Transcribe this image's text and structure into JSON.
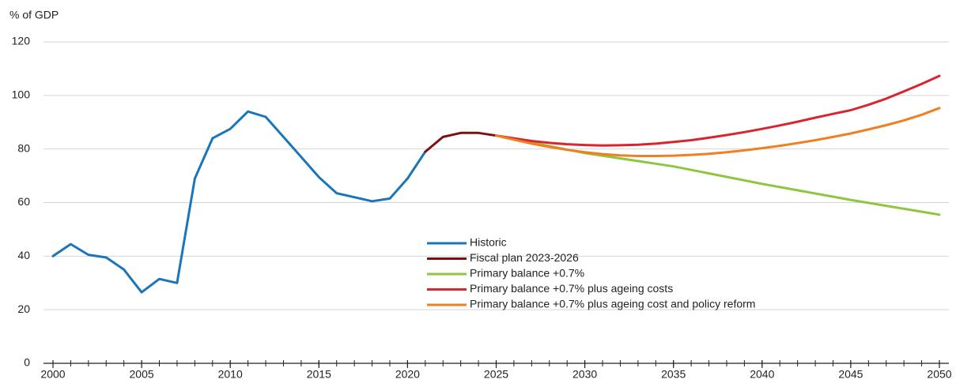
{
  "chart_data": {
    "type": "line",
    "y_label": "% of GDP",
    "xlim": [
      2000,
      2050
    ],
    "xticks": [
      2000,
      2005,
      2010,
      2015,
      2020,
      2025,
      2030,
      2035,
      2040,
      2045,
      2050
    ],
    "ylim": [
      0,
      120
    ],
    "yticks": [
      0,
      20,
      40,
      60,
      80,
      100,
      120
    ],
    "grid": true,
    "legend": "center",
    "series": [
      {
        "name": "Historic",
        "color": "#1b75bb",
        "x": [
          2000,
          2001,
          2002,
          2003,
          2004,
          2005,
          2006,
          2007,
          2008,
          2009,
          2010,
          2011,
          2012,
          2013,
          2014,
          2015,
          2016,
          2017,
          2018,
          2019,
          2020,
          2021
        ],
        "values": [
          40,
          44.5,
          40.5,
          39.5,
          35,
          26.5,
          31.5,
          30,
          69,
          84,
          87.5,
          94,
          92,
          84.5,
          77,
          69.5,
          63.5,
          62,
          60.5,
          61.5,
          69,
          79
        ]
      },
      {
        "name": "Fiscal plan 2023-2026",
        "color": "#7b1113",
        "x": [
          2021,
          2022,
          2023,
          2024,
          2025
        ],
        "values": [
          79,
          84.5,
          86,
          86,
          85
        ]
      },
      {
        "name": "Primary balance +0.7%",
        "color": "#8dc63f",
        "x": [
          2025,
          2030,
          2035,
          2040,
          2045,
          2050
        ],
        "values": [
          85,
          78.5,
          73.5,
          67,
          61,
          55.5
        ]
      },
      {
        "name": "Primary balance +0.7% plus ageing costs",
        "color": "#d7262f",
        "x": [
          2025,
          2026,
          2027,
          2028,
          2029,
          2030,
          2031,
          2032,
          2033,
          2034,
          2035,
          2036,
          2037,
          2038,
          2039,
          2040,
          2041,
          2042,
          2043,
          2044,
          2045,
          2046,
          2047,
          2048,
          2049,
          2050
        ],
        "values": [
          85,
          84,
          83,
          82.3,
          81.8,
          81.5,
          81.3,
          81.4,
          81.6,
          82,
          82.6,
          83.3,
          84.2,
          85.2,
          86.3,
          87.5,
          88.8,
          90.2,
          91.7,
          93.1,
          94.5,
          96.5,
          98.8,
          101.5,
          104.3,
          107.3
        ]
      },
      {
        "name": "Primary balance +0.7% plus ageing cost and policy reform",
        "color": "#f07f22",
        "x": [
          2025,
          2026,
          2027,
          2028,
          2029,
          2030,
          2031,
          2032,
          2033,
          2034,
          2035,
          2036,
          2037,
          2038,
          2039,
          2040,
          2041,
          2042,
          2043,
          2044,
          2045,
          2046,
          2047,
          2048,
          2049,
          2050
        ],
        "values": [
          85,
          83.5,
          82,
          80.8,
          79.7,
          78.8,
          78.1,
          77.6,
          77.4,
          77.4,
          77.5,
          77.8,
          78.2,
          78.8,
          79.5,
          80.3,
          81.2,
          82.2,
          83.3,
          84.5,
          85.8,
          87.3,
          88.9,
          90.7,
          92.8,
          95.3
        ]
      }
    ]
  }
}
